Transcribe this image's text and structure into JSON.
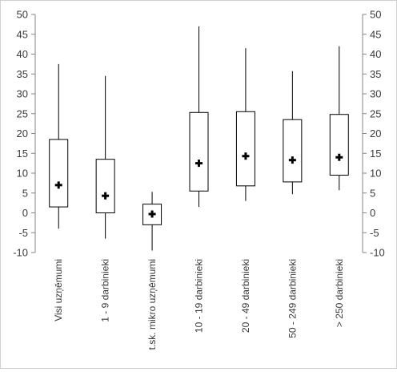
{
  "chart_data": {
    "type": "box",
    "title": "",
    "xlabel": "",
    "ylabel": "",
    "ylim": [
      -10,
      50
    ],
    "yticks": [
      -10,
      -5,
      0,
      5,
      10,
      15,
      20,
      25,
      30,
      35,
      40,
      45,
      50
    ],
    "y_axis_left": true,
    "y_axis_right": true,
    "grid": false,
    "legend": "none",
    "categories": [
      "Visi uzņēmumi",
      "1 - 9  darbinieki",
      "t.sk. mikro uzņēmumi",
      "10 - 19  darbinieki",
      "20 - 49 darbinieki",
      "50 - 249 darbinieki",
      "> 250 darbinieki"
    ],
    "series": [
      {
        "min": -4,
        "q1": 1.5,
        "q3": 18.5,
        "max": 37.5,
        "mean": 7
      },
      {
        "min": -6.5,
        "q1": 0,
        "q3": 13.5,
        "max": 34.5,
        "mean": 4.3
      },
      {
        "min": -9.5,
        "q1": -3,
        "q3": 2.2,
        "max": 5.3,
        "mean": -0.3
      },
      {
        "min": 1.5,
        "q1": 5.5,
        "q3": 25.3,
        "max": 47,
        "mean": 12.5
      },
      {
        "min": 3,
        "q1": 6.8,
        "q3": 25.5,
        "max": 41.5,
        "mean": 14.3
      },
      {
        "min": 4.7,
        "q1": 7.8,
        "q3": 23.5,
        "max": 35.7,
        "mean": 13.3
      },
      {
        "min": 5.7,
        "q1": 9.5,
        "q3": 24.8,
        "max": 42,
        "mean": 14
      }
    ],
    "colors": {
      "box_stroke": "#000000",
      "mean_marker": "#000000",
      "axis": "#868686",
      "text": "#3a3a3a"
    }
  }
}
